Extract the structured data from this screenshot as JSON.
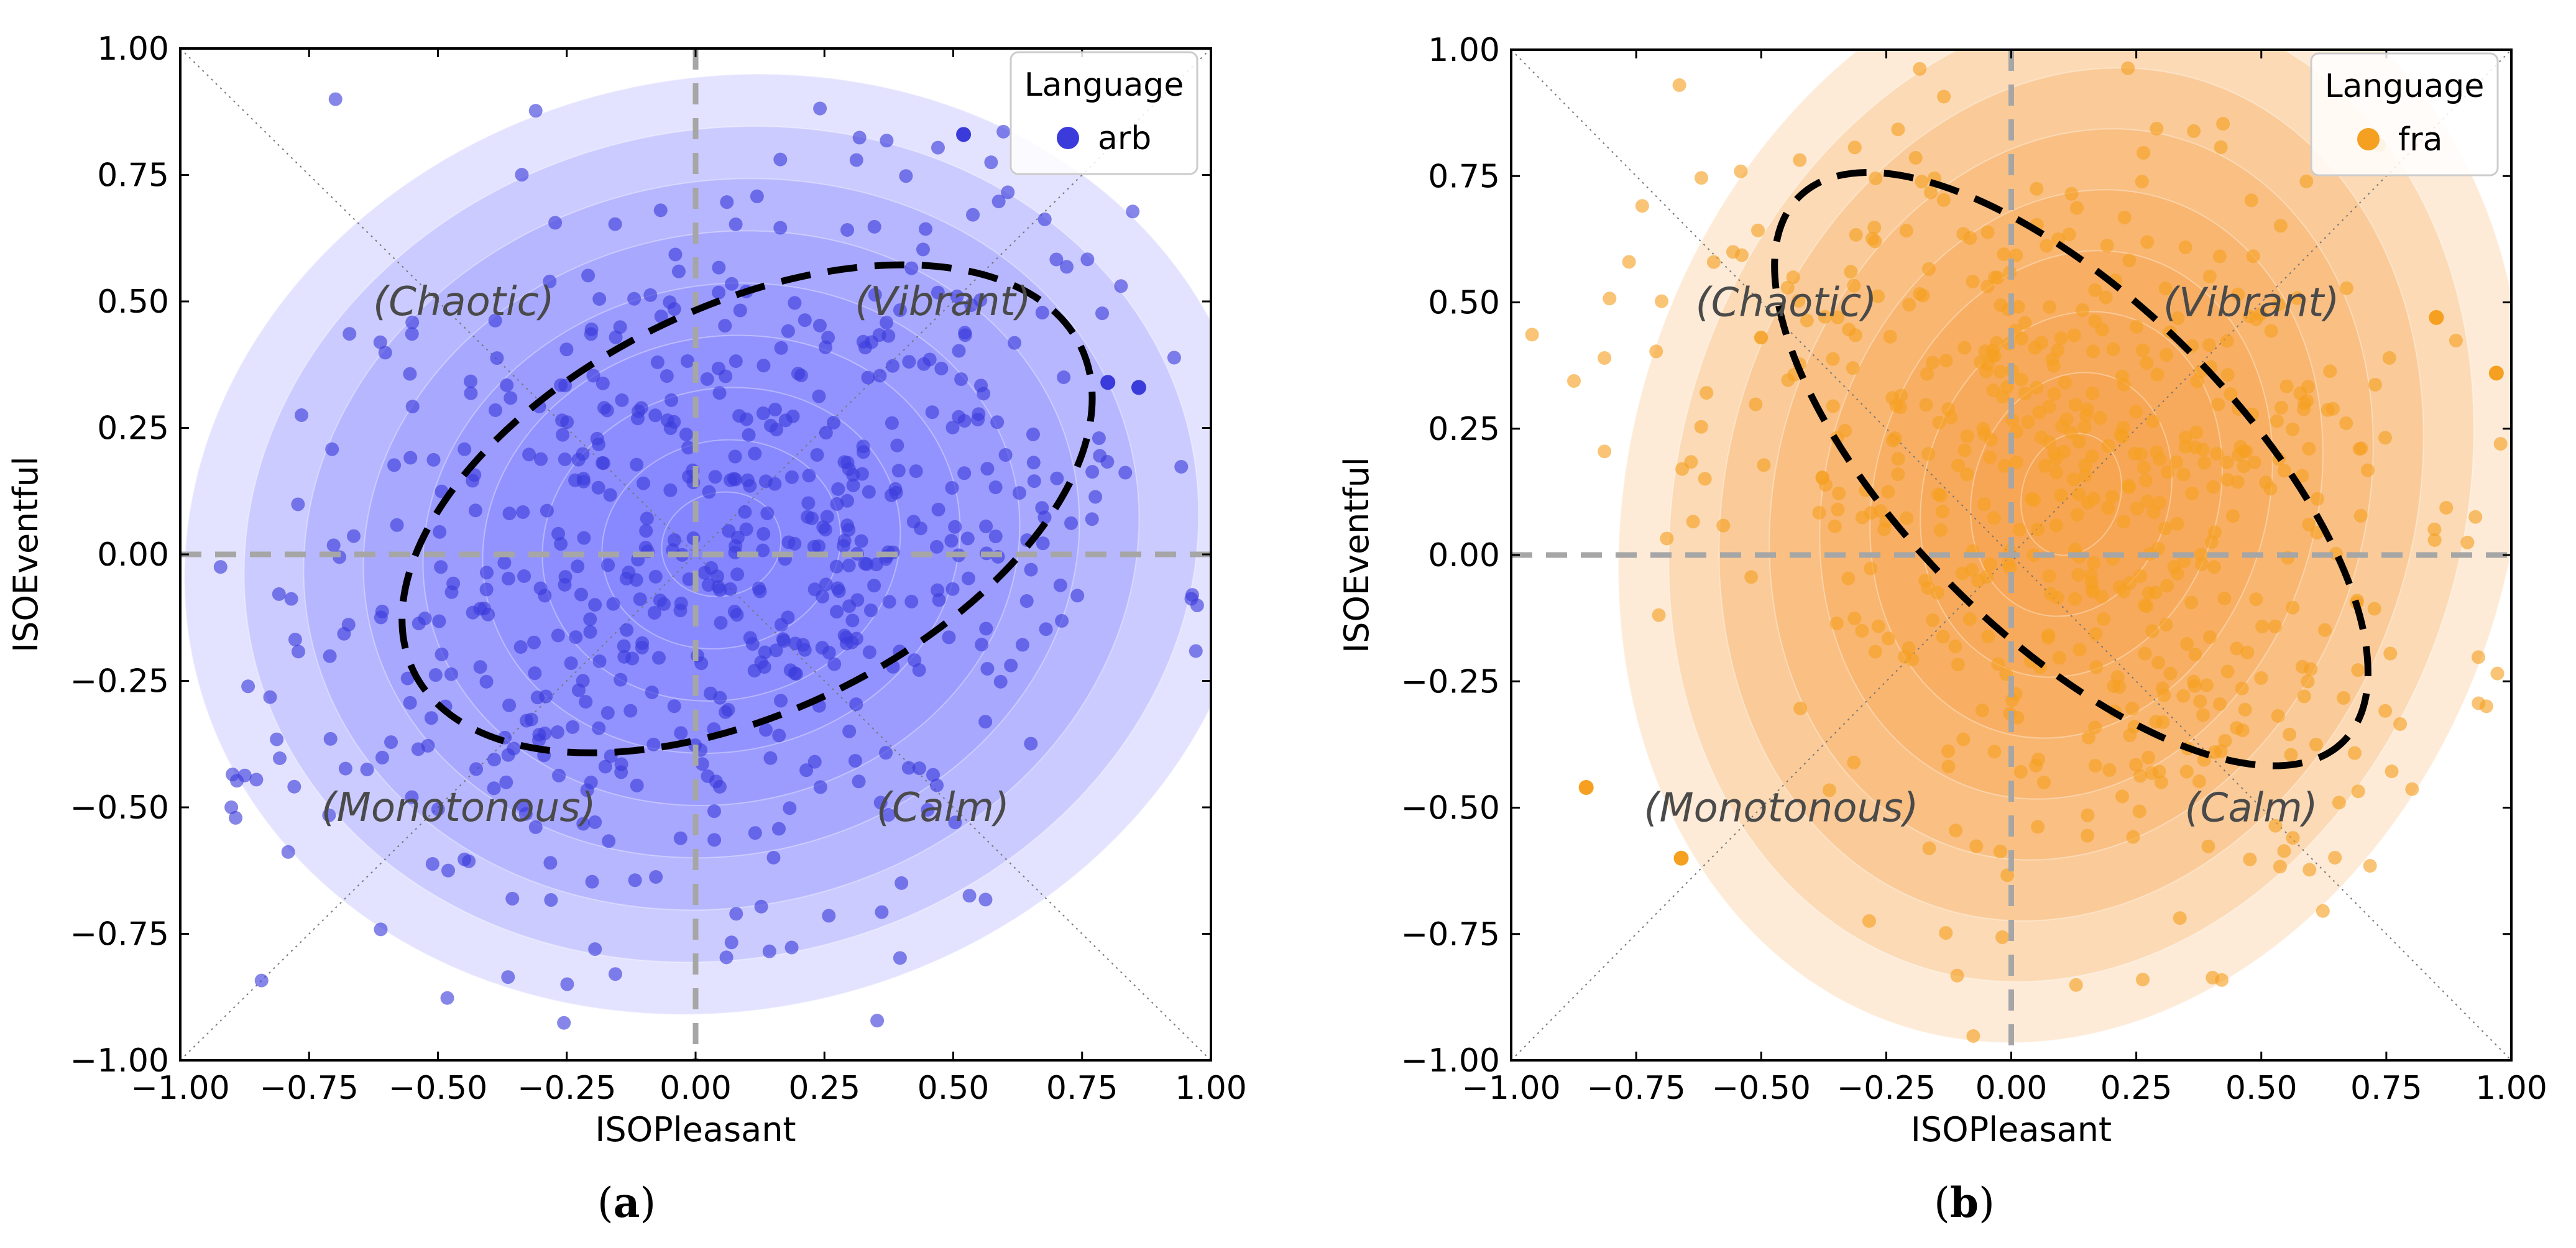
{
  "chart_data": [
    {
      "type": "scatter",
      "panel_caption_open": "(",
      "panel_caption_letter": "a",
      "panel_caption_close": ")",
      "xlabel": "ISOPleasant",
      "ylabel": "ISOEventful",
      "xlim": [
        -1.0,
        1.0
      ],
      "ylim": [
        -1.0,
        1.0
      ],
      "xticks": [
        "−1.00",
        "−0.75",
        "−0.50",
        "−0.25",
        "0.00",
        "0.25",
        "0.50",
        "0.75",
        "1.00"
      ],
      "yticks": [
        "1.00",
        "0.75",
        "0.50",
        "0.25",
        "0.00",
        "−0.25",
        "−0.50",
        "−0.75",
        "−1.00"
      ],
      "region_labels": {
        "chaotic": "(Chaotic)",
        "vibrant": "(Vibrant)",
        "monotonous": "(Monotonous)",
        "calm": "(Calm)"
      },
      "legend": {
        "title": "Language",
        "entry": "arb"
      },
      "color": "#3b3bdc",
      "fill_color": "#8080ff",
      "density_center": [
        0.05,
        0.02
      ],
      "density_spread": [
        0.5,
        0.4
      ],
      "density_tilt": 0.28,
      "ellipse": {
        "cx": 0.1,
        "cy": 0.09,
        "rx": 0.72,
        "ry": 0.4,
        "angle_deg": 26
      },
      "scatter": {
        "n": 620,
        "cx": 0.05,
        "cy": 0.03,
        "sx": 0.42,
        "sy": 0.38,
        "rho": 0.28,
        "seed": 11
      },
      "outliers": [
        [
          0.52,
          0.83
        ],
        [
          0.8,
          0.34
        ],
        [
          0.86,
          0.33
        ]
      ]
    },
    {
      "type": "scatter",
      "panel_caption_open": "(",
      "panel_caption_letter": "b",
      "panel_caption_close": ")",
      "xlabel": "ISOPleasant",
      "ylabel": "ISOEventful",
      "xlim": [
        -1.0,
        1.0
      ],
      "ylim": [
        -1.0,
        1.0
      ],
      "xticks": [
        "−1.00",
        "−0.75",
        "−0.50",
        "−0.25",
        "0.00",
        "0.25",
        "0.50",
        "0.75",
        "1.00"
      ],
      "yticks": [
        "1.00",
        "0.75",
        "0.50",
        "0.25",
        "0.00",
        "−0.25",
        "−0.50",
        "−0.75",
        "−1.00"
      ],
      "region_labels": {
        "chaotic": "(Chaotic)",
        "vibrant": "(Vibrant)",
        "monotonous": "(Monotonous)",
        "calm": "(Calm)"
      },
      "legend": {
        "title": "Language",
        "entry": "fra"
      },
      "color": "#f5a020",
      "fill_color": "#f7a24a",
      "density_center": [
        0.12,
        0.12
      ],
      "density_spread": [
        0.42,
        0.48
      ],
      "density_tilt": -0.35,
      "ellipse": {
        "cx": 0.12,
        "cy": 0.17,
        "rx": 0.77,
        "ry": 0.33,
        "angle_deg": -45
      },
      "scatter": {
        "n": 560,
        "cx": 0.1,
        "cy": 0.12,
        "sx": 0.36,
        "sy": 0.4,
        "rho": -0.3,
        "seed": 23
      },
      "outliers": [
        [
          0.85,
          0.47
        ],
        [
          0.97,
          0.36
        ],
        [
          -0.85,
          -0.46
        ],
        [
          -0.66,
          -0.6
        ]
      ]
    }
  ]
}
